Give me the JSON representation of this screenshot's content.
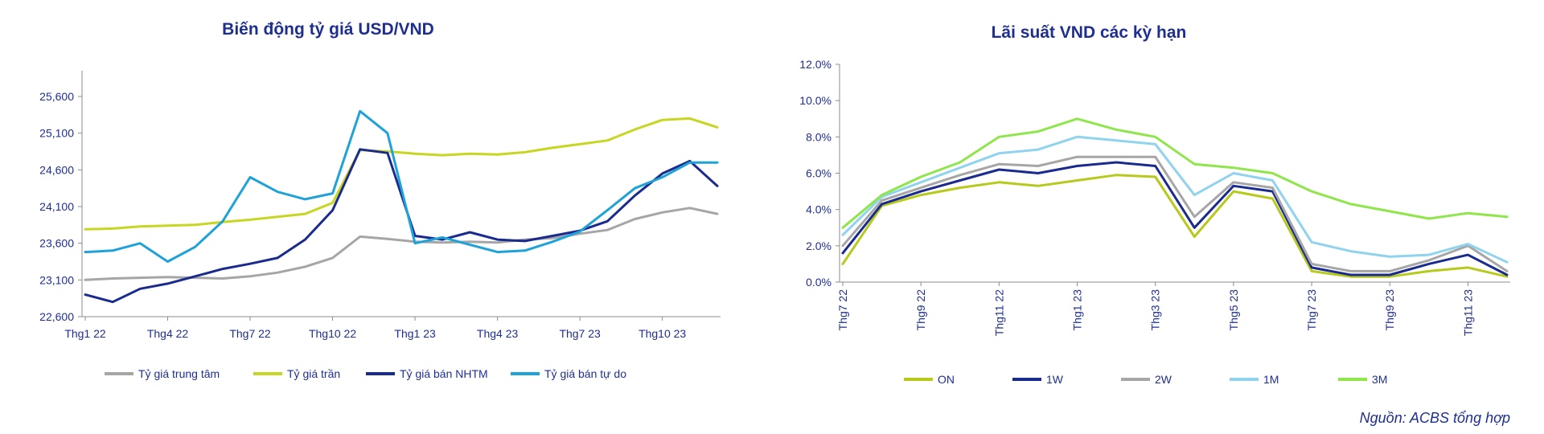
{
  "source": "Nguồn: ACBS tổng hợp",
  "chart_data": [
    {
      "type": "line",
      "title": "Biến động tỷ giá USD/VND",
      "ylim": [
        22600,
        25600
      ],
      "yticks": [
        22600,
        23100,
        23600,
        24100,
        24600,
        25100,
        25600
      ],
      "ytick_labels": [
        "22,600",
        "23,100",
        "23,600",
        "24,100",
        "24,600",
        "25,100",
        "25,600"
      ],
      "x": [
        "Thg1 22",
        "Thg2 22",
        "Thg3 22",
        "Thg4 22",
        "Thg5 22",
        "Thg6 22",
        "Thg7 22",
        "Thg8 22",
        "Thg9 22",
        "Thg10 22",
        "Thg11 22",
        "Thg12 22",
        "Thg1 23",
        "Thg2 23",
        "Thg3 23",
        "Thg4 23",
        "Thg5 23",
        "Thg6 23",
        "Thg7 23",
        "Thg8 23",
        "Thg9 23",
        "Thg10 23",
        "Thg11 23",
        "Thg12 23"
      ],
      "xtick_labels": [
        "Thg1 22",
        "Thg4 22",
        "Thg7 22",
        "Thg10 22",
        "Thg1 23",
        "Thg4 23",
        "Thg7 23",
        "Thg10 23"
      ],
      "legend": "bottom",
      "grid": false,
      "series": [
        {
          "name": "Tỷ giá trung tâm",
          "color": "#a6a6a6",
          "values": [
            23100,
            23120,
            23130,
            23140,
            23130,
            23120,
            23150,
            23200,
            23280,
            23400,
            23690,
            23660,
            23620,
            23610,
            23620,
            23610,
            23650,
            23670,
            23730,
            23780,
            23930,
            24020,
            24080,
            24000
          ]
        },
        {
          "name": "Tỷ giá trần",
          "color": "#c7d620",
          "values": [
            23790,
            23800,
            23830,
            23840,
            23850,
            23890,
            23920,
            23960,
            24000,
            24150,
            24870,
            24850,
            24820,
            24800,
            24820,
            24810,
            24840,
            24900,
            24950,
            25000,
            25150,
            25280,
            25300,
            25180
          ]
        },
        {
          "name": "Tỷ giá bán NHTM",
          "color": "#1a2b8f",
          "values": [
            22900,
            22800,
            22980,
            23050,
            23150,
            23250,
            23320,
            23400,
            23650,
            24050,
            24880,
            24830,
            23700,
            23650,
            23750,
            23650,
            23630,
            23700,
            23770,
            23900,
            24250,
            24550,
            24720,
            24380
          ]
        },
        {
          "name": "Tỷ giá bán tự do",
          "color": "#1fa2d8",
          "values": [
            23480,
            23500,
            23600,
            23350,
            23550,
            23900,
            24500,
            24300,
            24200,
            24280,
            25400,
            25100,
            23600,
            23680,
            23580,
            23480,
            23500,
            23620,
            23760,
            24050,
            24350,
            24500,
            24700,
            24700
          ]
        }
      ]
    },
    {
      "type": "line",
      "title": "Lãi suất VND các kỳ hạn",
      "ylim": [
        0,
        12
      ],
      "yticks": [
        0,
        2,
        4,
        6,
        8,
        10,
        12
      ],
      "ytick_labels": [
        "0.0%",
        "2.0%",
        "4.0%",
        "6.0%",
        "8.0%",
        "10.0%",
        "12.0%"
      ],
      "x": [
        "Thg7 22",
        "Thg8 22",
        "Thg9 22",
        "Thg10 22",
        "Thg11 22",
        "Thg12 22",
        "Thg1 23",
        "Thg2 23",
        "Thg3 23",
        "Thg4 23",
        "Thg5 23",
        "Thg6 23",
        "Thg7 23",
        "Thg8 23",
        "Thg9 23",
        "Thg10 23",
        "Thg11 23",
        "Thg12 23"
      ],
      "xtick_labels": [
        "Thg7 22",
        "Thg9 22",
        "Thg11 22",
        "Thg1 23",
        "Thg3 23",
        "Thg5 23",
        "Thg7 23",
        "Thg9 23",
        "Thg11 23"
      ],
      "legend": "bottom",
      "grid": false,
      "series": [
        {
          "name": "ON",
          "color": "#b7c91a",
          "values": [
            1.0,
            4.2,
            4.8,
            5.2,
            5.5,
            5.3,
            5.6,
            5.9,
            5.8,
            2.5,
            5.0,
            4.6,
            0.6,
            0.3,
            0.3,
            0.6,
            0.8,
            0.3
          ]
        },
        {
          "name": "1W",
          "color": "#1a2b8f",
          "values": [
            1.6,
            4.3,
            5.0,
            5.6,
            6.2,
            6.0,
            6.4,
            6.6,
            6.4,
            3.0,
            5.3,
            5.0,
            0.8,
            0.4,
            0.4,
            1.0,
            1.5,
            0.4
          ]
        },
        {
          "name": "2W",
          "color": "#a6a6a6",
          "values": [
            2.0,
            4.5,
            5.2,
            5.9,
            6.5,
            6.4,
            6.9,
            6.9,
            6.9,
            3.6,
            5.5,
            5.2,
            1.0,
            0.6,
            0.6,
            1.2,
            2.0,
            0.6
          ]
        },
        {
          "name": "1M",
          "color": "#8fd3ef",
          "values": [
            2.6,
            4.7,
            5.5,
            6.3,
            7.1,
            7.3,
            8.0,
            7.8,
            7.6,
            4.8,
            6.0,
            5.6,
            2.2,
            1.7,
            1.4,
            1.5,
            2.1,
            1.1
          ]
        },
        {
          "name": "3M",
          "color": "#8ee64a",
          "values": [
            3.0,
            4.8,
            5.8,
            6.6,
            8.0,
            8.3,
            9.0,
            8.4,
            8.0,
            6.5,
            6.3,
            6.0,
            5.0,
            4.3,
            3.9,
            3.5,
            3.8,
            3.6
          ]
        }
      ]
    }
  ]
}
